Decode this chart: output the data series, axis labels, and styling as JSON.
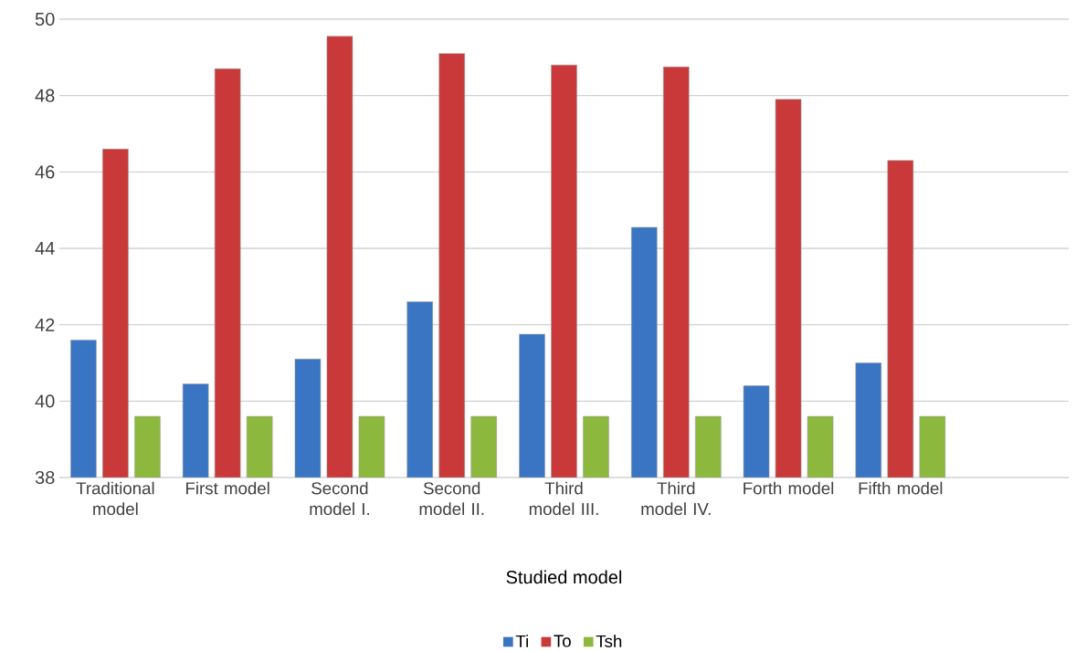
{
  "chart_data": {
    "type": "bar",
    "xlabel": "Studied model",
    "categories": [
      "Traditional model",
      "First model",
      "Second model I.",
      "Second model II.",
      "Third model III.",
      "Third model IV.",
      "Forth model",
      "Fifth model",
      null
    ],
    "series": [
      {
        "name": "Ti",
        "color": "#3a75c4",
        "values": [
          41.6,
          40.45,
          41.1,
          42.6,
          41.75,
          44.55,
          40.4,
          41.0,
          null
        ]
      },
      {
        "name": "To",
        "color": "#c9393a",
        "values": [
          46.6,
          48.7,
          49.55,
          49.1,
          48.8,
          48.75,
          47.9,
          46.3,
          null
        ]
      },
      {
        "name": "Tsh",
        "color": "#8db83e",
        "values": [
          39.6,
          39.6,
          39.6,
          39.6,
          39.6,
          39.6,
          39.6,
          39.6,
          null
        ]
      }
    ],
    "ylim": [
      38,
      50
    ],
    "yticks": [
      38,
      40,
      42,
      44,
      46,
      48,
      50
    ],
    "grid": "y",
    "legend": "bottom"
  }
}
